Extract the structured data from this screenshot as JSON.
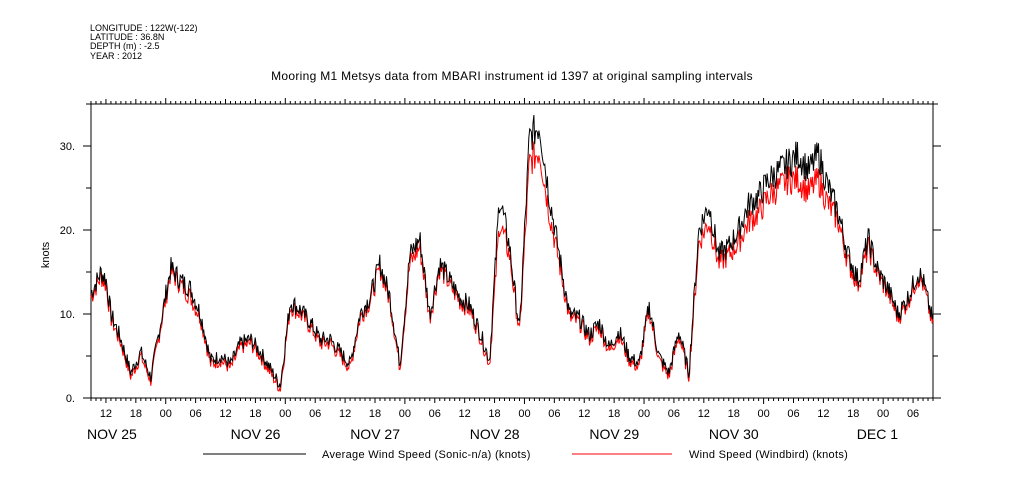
{
  "header": {
    "longitude": "LONGITUDE : 122W(-122)",
    "latitude": "LATITUDE : 36.8N",
    "depth": "DEPTH (m) : -2.5",
    "year": "YEAR : 2012"
  },
  "chart_data": {
    "type": "line",
    "title": "Mooring M1 Metsys data from MBARI instrument id 1397 at original sampling intervals",
    "ylabel": "knots",
    "xlabel": "",
    "ylim": [
      0,
      35
    ],
    "xlim_hours_label": "Nov 24 09:00 to Dec 1 10:00, 2012",
    "yticks": [
      "0.",
      "10.",
      "20.",
      "30."
    ],
    "xticks_hours": [
      "12",
      "18",
      "00",
      "06",
      "12",
      "18",
      "00",
      "06",
      "12",
      "18",
      "00",
      "06",
      "12",
      "18",
      "00",
      "06",
      "12",
      "18",
      "00",
      "06",
      "12",
      "18",
      "00",
      "06",
      "12",
      "18",
      "00",
      "06"
    ],
    "day_labels": [
      "NOV 25",
      "NOV 26",
      "NOV 27",
      "NOV 28",
      "NOV 29",
      "NOV 30",
      "DEC  1"
    ],
    "legend_position": "bottom",
    "x_hours_anchors": [
      0,
      2,
      3,
      4,
      6,
      8,
      10,
      12,
      14,
      16,
      18,
      20,
      22,
      24,
      26,
      28,
      30,
      32,
      34,
      36,
      38,
      40,
      42,
      44,
      46,
      48,
      50,
      52,
      54,
      56,
      58,
      60,
      62,
      64,
      66,
      68,
      70,
      72,
      74,
      76,
      78,
      80,
      82,
      84,
      86,
      88,
      90,
      92,
      94,
      96,
      98,
      100,
      102,
      104,
      106,
      108,
      110,
      112,
      114,
      116,
      118,
      120,
      122,
      124,
      126,
      128,
      130,
      132,
      134,
      136,
      138,
      140,
      142,
      144,
      146,
      148,
      150,
      152,
      154,
      156,
      158,
      160,
      162,
      164,
      166,
      167,
      169
    ],
    "series": [
      {
        "name": "Average Wind Speed (Sonic-n/a) (knots)",
        "color": "#000000",
        "values": [
          12.5,
          15.0,
          14.2,
          10.0,
          7.0,
          3.0,
          5.5,
          2.5,
          9.0,
          15.5,
          14.0,
          13.0,
          10.0,
          4.5,
          5.0,
          4.0,
          6.5,
          7.0,
          5.5,
          3.5,
          1.5,
          11.5,
          10.5,
          9.0,
          7.0,
          7.0,
          5.5,
          4.0,
          10.0,
          12.0,
          16.0,
          12.0,
          4.0,
          17.0,
          19.0,
          10.0,
          16.0,
          14.0,
          12.0,
          11.0,
          8.0,
          4.5,
          24.0,
          18.0,
          8.0,
          31.0,
          32.5,
          24.0,
          17.0,
          10.0,
          9.5,
          7.5,
          9.0,
          6.0,
          8.0,
          5.0,
          4.0,
          11.0,
          5.0,
          3.0,
          8.0,
          3.0,
          20.0,
          23.0,
          17.0,
          18.0,
          20.0,
          23.0,
          24.0,
          26.0,
          27.0,
          28.0,
          29.0,
          27.0,
          29.0,
          25.0,
          22.0,
          17.0,
          14.0,
          19.0,
          15.0,
          13.0,
          10.0,
          12.0,
          15.0,
          14.0,
          9.0
        ]
      },
      {
        "name": "Wind Speed (Windbird) (knots)",
        "color": "#ff0000",
        "values": [
          12.0,
          14.5,
          13.5,
          9.5,
          6.5,
          2.5,
          5.0,
          2.0,
          8.5,
          15.0,
          13.5,
          12.0,
          9.5,
          4.0,
          4.5,
          3.5,
          6.0,
          6.5,
          5.0,
          3.0,
          1.0,
          11.0,
          10.0,
          8.5,
          6.5,
          6.5,
          5.0,
          3.5,
          9.5,
          11.5,
          15.5,
          11.5,
          3.5,
          16.0,
          18.0,
          9.5,
          15.5,
          13.5,
          11.5,
          10.5,
          7.5,
          4.0,
          21.0,
          17.0,
          7.5,
          28.0,
          29.5,
          22.0,
          16.0,
          9.5,
          9.0,
          7.0,
          8.5,
          5.5,
          7.5,
          4.5,
          3.5,
          10.5,
          4.5,
          2.5,
          7.5,
          2.5,
          18.5,
          21.0,
          16.0,
          17.0,
          18.5,
          21.0,
          22.0,
          24.0,
          25.0,
          26.0,
          26.0,
          24.5,
          26.0,
          23.0,
          21.0,
          16.0,
          13.5,
          18.0,
          14.5,
          12.5,
          9.5,
          11.5,
          14.5,
          13.5,
          8.5
        ]
      }
    ]
  }
}
